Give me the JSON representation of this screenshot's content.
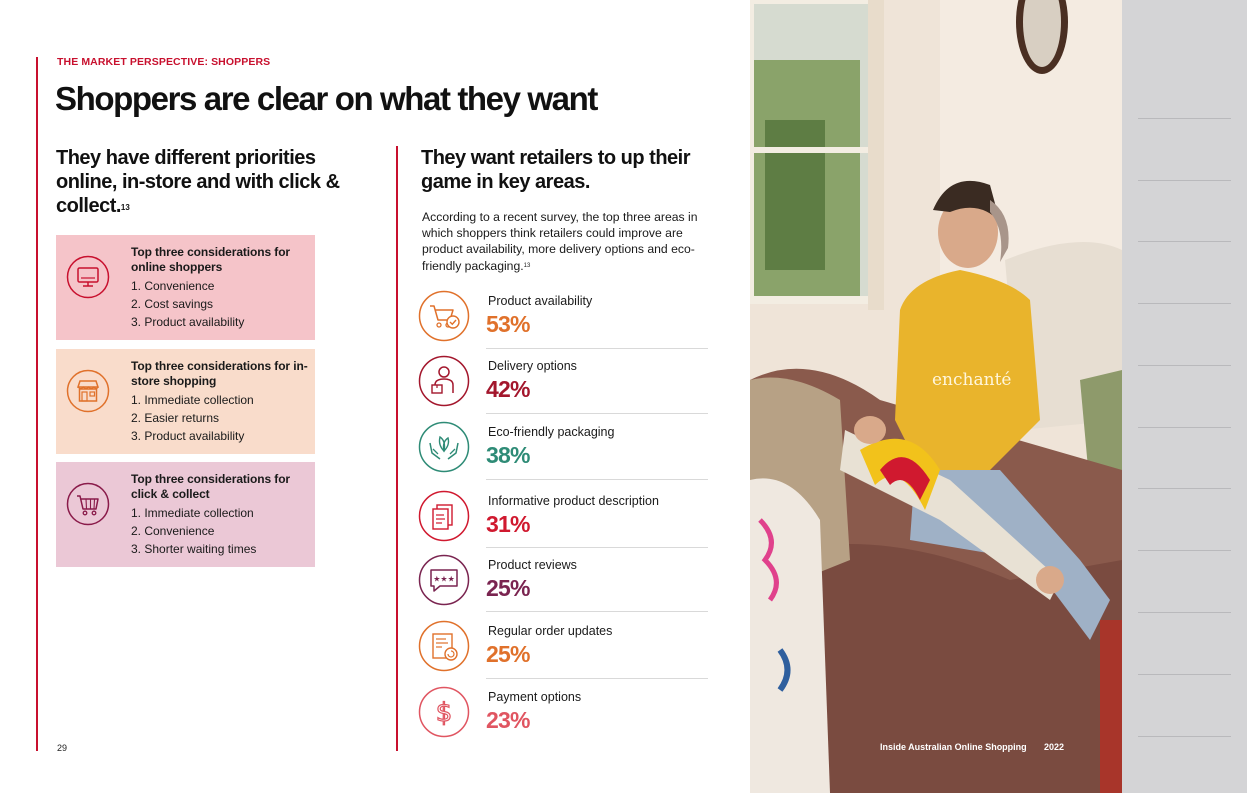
{
  "section_label": "THE MARKET PERSPECTIVE: SHOPPERS",
  "page_title": "Shoppers are clear on what they want",
  "left_heading": {
    "text": "They have different priorities online, in-store and with click & collect.",
    "footnote": "13"
  },
  "right_heading": {
    "text": "They want retailers to up their game in key areas."
  },
  "intro": {
    "text": "According to a recent survey, the top three areas in which shoppers think retailers could improve are product availability, more delivery options and eco-friendly packaging.",
    "footnote": "13"
  },
  "considerations": [
    {
      "title": "Top three considerations for online shoppers",
      "items": [
        "1. Convenience",
        "2. Cost savings",
        "3. Product availability"
      ],
      "icon": "monitor-icon",
      "bg": "#f5c4c9",
      "icon_color": "#c8102e"
    },
    {
      "title": "Top three considerations for in-store shopping",
      "items": [
        "1. Immediate collection",
        "2. Easier returns",
        "3. Product availability"
      ],
      "icon": "storefront-icon",
      "bg": "#f9dccb",
      "icon_color": "#e0712b"
    },
    {
      "title": "Top three considerations for click & collect",
      "items": [
        "1. Immediate collection",
        "2. Convenience",
        "3. Shorter waiting times"
      ],
      "icon": "cart-icon",
      "bg": "#ebc8d6",
      "icon_color": "#8a1b4a"
    }
  ],
  "stats": [
    {
      "label": "Product availability",
      "value": "53%",
      "color": "#e0712b",
      "icon": "cart-check-icon"
    },
    {
      "label": "Delivery options",
      "value": "42%",
      "color": "#a3162c",
      "icon": "delivery-person-icon"
    },
    {
      "label": "Eco-friendly packaging",
      "value": "38%",
      "color": "#2e8b76",
      "icon": "hands-leaf-icon"
    },
    {
      "label": "Informative product description",
      "value": "31%",
      "color": "#d0192f",
      "icon": "document-icon"
    },
    {
      "label": "Product reviews",
      "value": "25%",
      "color": "#7a2450",
      "icon": "review-bubble-icon"
    },
    {
      "label": "Regular order updates",
      "value": "25%",
      "color": "#e0712b",
      "icon": "order-update-icon"
    },
    {
      "label": "Payment options",
      "value": "23%",
      "color": "#e05561",
      "icon": "dollar-icon"
    }
  ],
  "page_number": "29",
  "footer": {
    "publication": "Inside Australian Online Shopping",
    "year": "2022"
  },
  "photo_shirt_text": "enchanté"
}
